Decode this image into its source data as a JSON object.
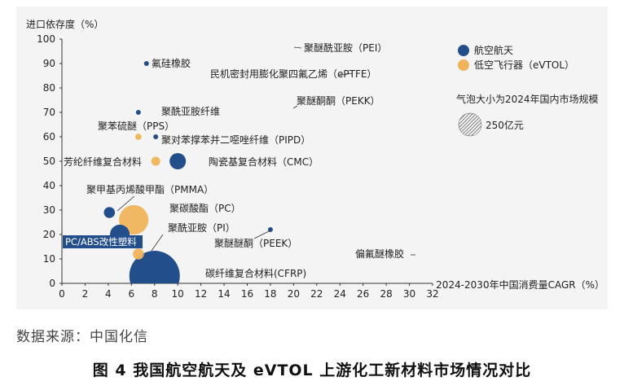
{
  "chart_data": {
    "type": "scatter",
    "ylabel": "进口依存度（%）",
    "xlabel": "2024-2030年中国消费量CAGR（%）",
    "xlim": [
      0,
      32
    ],
    "ylim": [
      0,
      100
    ],
    "xticks": [
      "0",
      "2",
      "4",
      "6",
      "8",
      "10",
      "12",
      "14",
      "16",
      "18",
      "20",
      "22",
      "24",
      "26",
      "28",
      "30",
      "32"
    ],
    "yticks": [
      "0",
      "10",
      "20",
      "30",
      "40",
      "50",
      "60",
      "70",
      "80",
      "90",
      "100"
    ],
    "grid": false,
    "legend_position": "right",
    "series": [
      {
        "name": "航空航天",
        "color": "#234e8c"
      },
      {
        "name": "低空飞行器（eVTOL）",
        "color": "#f0b45c"
      }
    ],
    "size_legend": {
      "title": "气泡大小为2024年国内市场规模",
      "label": "250亿元"
    },
    "points": [
      {
        "label": "碳纤维复合材料(CFRP)",
        "x": 8.0,
        "y": 3,
        "size": 250,
        "series": 0
      },
      {
        "label": "PC/ABS改性塑料",
        "x": 5.0,
        "y": 20,
        "size": 38,
        "series": 0
      },
      {
        "label": "聚碳酸酯（PC）",
        "x": 6.2,
        "y": 26,
        "size": 85,
        "series": 1
      },
      {
        "label": "聚酰亚胺（PI）",
        "x": 6.6,
        "y": 12,
        "size": 12,
        "series": 1
      },
      {
        "label": "聚甲基丙烯酸甲酯（PMMA）",
        "x": 4.1,
        "y": 29,
        "size": 12,
        "series": 0
      },
      {
        "label": "陶瓷基复合材料（CMC）",
        "x": 10.0,
        "y": 50,
        "size": 26,
        "series": 0
      },
      {
        "label": "芳纶纤维复合材料",
        "x": 8.1,
        "y": 50,
        "size": 8,
        "series": 1
      },
      {
        "label": "聚苯硫醚（PPS）",
        "x": 6.6,
        "y": 60,
        "size": 4,
        "series": 1
      },
      {
        "label": "聚对苯撑苯并二噁唑纤维（PIPD）",
        "x": 8.1,
        "y": 60,
        "size": 0.6,
        "series": 0
      },
      {
        "label": "聚酰亚胺纤维",
        "x": 6.6,
        "y": 70,
        "size": 1.5,
        "series": 0
      },
      {
        "label": "氟硅橡胶",
        "x": 7.3,
        "y": 90,
        "size": 0.8,
        "series": 0
      },
      {
        "label": "聚醚醚酮（PEEK）",
        "x": 18.0,
        "y": 22,
        "size": 1.4,
        "series": 0
      },
      {
        "label": "聚醚酰亚胺（PEI）",
        "x": 20.5,
        "y": 93,
        "size": 0,
        "series": 0
      },
      {
        "label": "民机密封用膨化聚四氟乙烯（ePTFE）",
        "x": 20.5,
        "y": 88,
        "size": 0,
        "series": 0
      },
      {
        "label": "聚醚酮酮（PEKK）",
        "x": 20.5,
        "y": 73,
        "size": 0,
        "series": 0
      },
      {
        "label": "偏氟醚橡胶",
        "x": 30.0,
        "y": 12,
        "size": 0,
        "series": 0
      }
    ]
  },
  "source": "数据来源：中国化信",
  "caption": "图 4  我国航空航天及 eVTOL 上游化工新材料市场情况对比"
}
